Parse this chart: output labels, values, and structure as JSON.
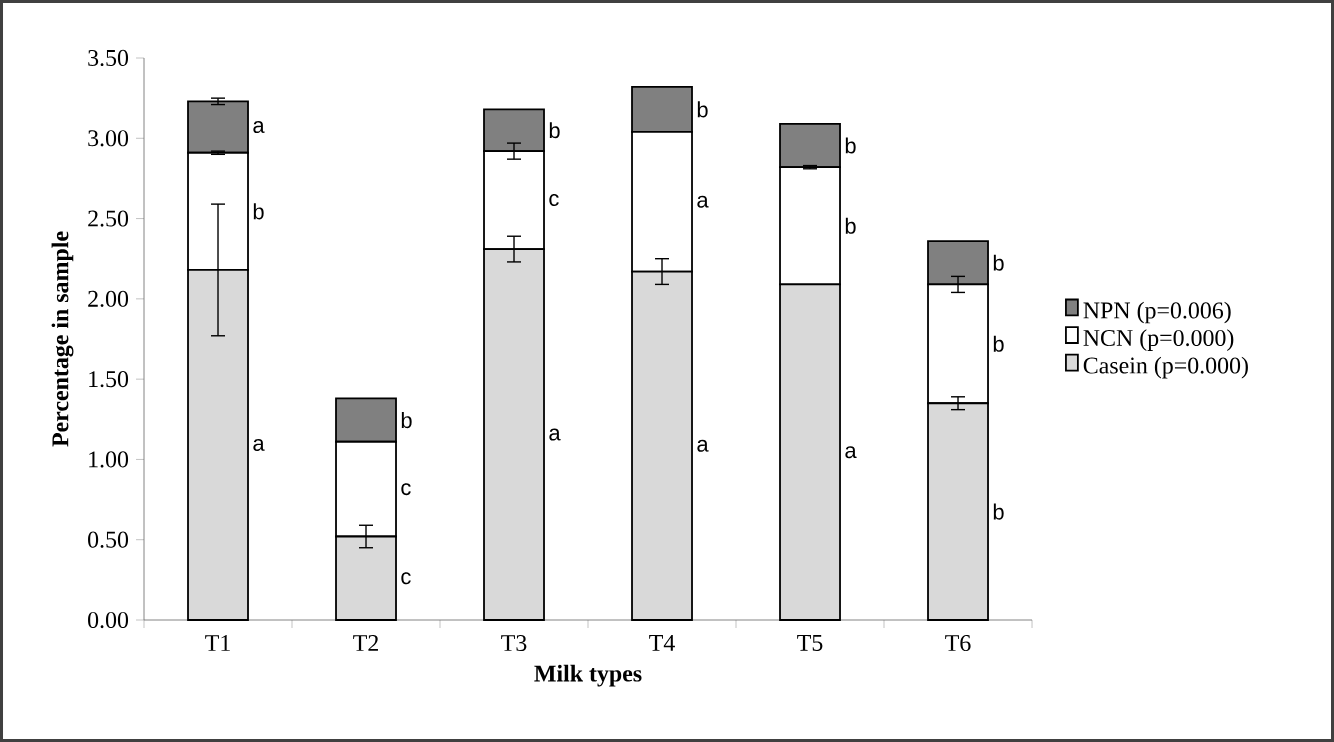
{
  "chart_data": {
    "type": "bar",
    "stacked": true,
    "xlabel": "Milk types",
    "ylabel": "Percentage in sample",
    "categories": [
      "T1",
      "T2",
      "T3",
      "T4",
      "T5",
      "T6"
    ],
    "series": [
      {
        "name": "Casein (p=0.000)",
        "color": "#d9d9d9",
        "values": [
          2.18,
          0.52,
          2.31,
          2.17,
          2.09,
          1.35
        ],
        "errors": [
          0.41,
          0.07,
          0.08,
          0.08,
          null,
          0.04
        ]
      },
      {
        "name": "NCN (p=0.000)",
        "color": "#ffffff",
        "values": [
          0.73,
          0.59,
          0.61,
          0.87,
          0.73,
          0.74
        ],
        "errors": [
          0.01,
          null,
          0.05,
          null,
          0.01,
          0.05
        ]
      },
      {
        "name": "NPN (p=0.006)",
        "color": "#808080",
        "values": [
          0.32,
          0.27,
          0.26,
          0.28,
          0.27,
          0.27
        ],
        "errors": [
          0.02,
          null,
          null,
          null,
          null,
          null
        ]
      }
    ],
    "ylim": [
      0,
      3.5
    ],
    "yticks": [
      {
        "value": 0,
        "label": "0.00"
      },
      {
        "value": 0.5,
        "label": "0.50"
      },
      {
        "value": 1,
        "label": "1.00"
      },
      {
        "value": 1.5,
        "label": "1.50"
      },
      {
        "value": 2,
        "label": "2.00"
      },
      {
        "value": 2.5,
        "label": "2.50"
      },
      {
        "value": 3,
        "label": "3.00"
      },
      {
        "value": 3.5,
        "label": "3.50"
      }
    ],
    "legend": "right",
    "annotations": [
      "a",
      "b",
      "a",
      "c",
      "c",
      "b",
      "a",
      "c",
      "b",
      "a",
      "a",
      "b",
      "a",
      "b",
      "b",
      "b",
      "b",
      "b"
    ]
  }
}
